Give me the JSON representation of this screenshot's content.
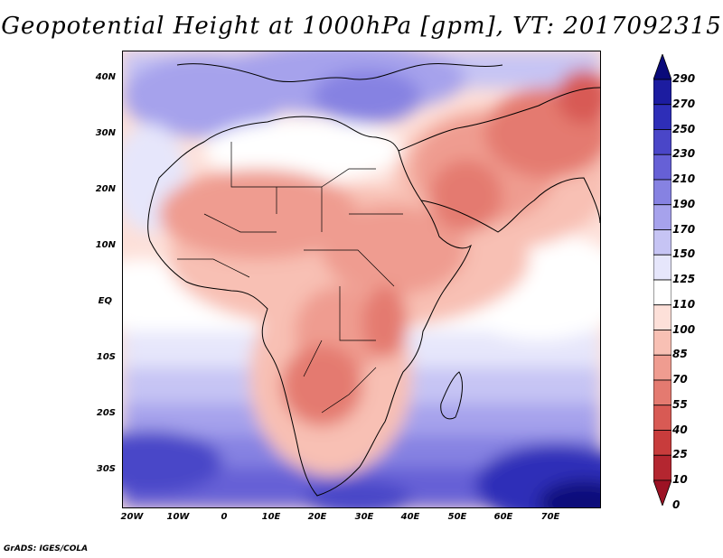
{
  "title": "Geopotential Height at 1000hPa [gpm], VT: 2017092315",
  "footer": "GrADS: IGES/COLA",
  "axes": {
    "lat_labels": [
      "40N",
      "30N",
      "20N",
      "10N",
      "EQ",
      "10S",
      "20S",
      "30S"
    ],
    "lon_labels": [
      "20W",
      "10W",
      "0",
      "10E",
      "20E",
      "30E",
      "40E",
      "50E",
      "60E",
      "70E"
    ]
  },
  "colorbar": {
    "levels": [
      "290",
      "270",
      "250",
      "230",
      "210",
      "190",
      "170",
      "150",
      "125",
      "110",
      "100",
      "85",
      "70",
      "55",
      "40",
      "25",
      "10",
      "0"
    ],
    "colors": [
      "#0a0a7a",
      "#1c1ca0",
      "#2e2eb8",
      "#4a46c8",
      "#6660d6",
      "#8682e2",
      "#a6a2ec",
      "#c6c4f4",
      "#e6e6fb",
      "#ffffff",
      "#fde0d9",
      "#f8c0b4",
      "#ef9c90",
      "#e47a70",
      "#d85a54",
      "#c83c3c",
      "#b42630",
      "#9c1224"
    ]
  }
}
